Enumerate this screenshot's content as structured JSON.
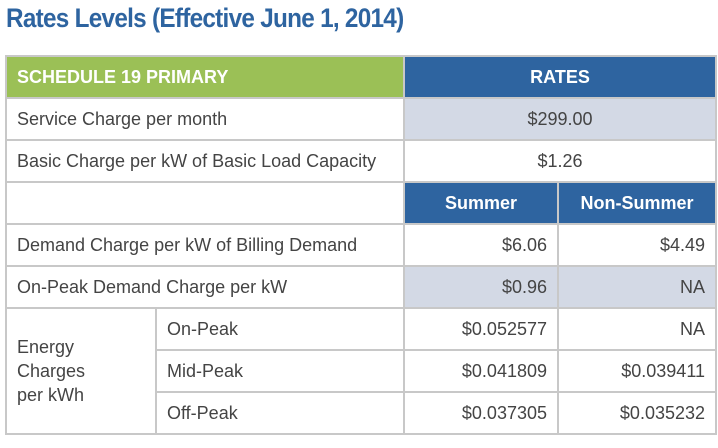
{
  "title": "Rates Levels (Effective June 1, 2014)",
  "header": {
    "schedule": "SCHEDULE 19 PRIMARY",
    "rates": "RATES"
  },
  "service": {
    "label": "Service Charge per month",
    "value": "$299.00"
  },
  "basic": {
    "label": "Basic Charge per kW of Basic Load Capacity",
    "value": "$1.26"
  },
  "seasons": {
    "summer": "Summer",
    "non_summer": "Non-Summer"
  },
  "demand": {
    "label": "Demand Charge per kW of Billing Demand",
    "summer": "$6.06",
    "non_summer": "$4.49"
  },
  "onpeak_demand": {
    "label": "On-Peak Demand Charge per kW",
    "summer": "$0.96",
    "non_summer": "NA"
  },
  "energy": {
    "label_lines": [
      "Energy",
      "Charges",
      "per kWh"
    ],
    "rows": [
      {
        "period": "On-Peak",
        "summer": "$0.052577",
        "non_summer": "NA"
      },
      {
        "period": "Mid-Peak",
        "summer": "$0.041809",
        "non_summer": "$0.039411"
      },
      {
        "period": "Off-Peak",
        "summer": "$0.037305",
        "non_summer": "$0.035232"
      }
    ]
  }
}
